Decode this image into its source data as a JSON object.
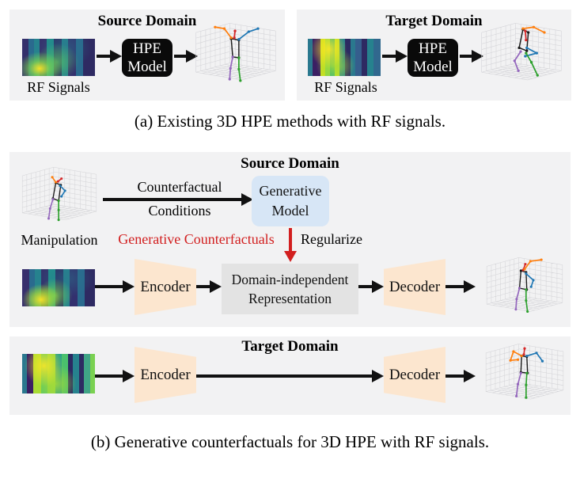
{
  "colors": {
    "panel_bg": "#f2f2f3",
    "hpe_box": "#0a0a0a",
    "hpe_text": "#ffffff",
    "generative_box": "#d7e6f6",
    "codec_box": "#fce6cf",
    "representation_box": "#e3e3e3",
    "red_accent": "#d21f1f",
    "arrow": "#111111",
    "skeleton": {
      "orange": "#ff7f0e",
      "blue": "#1f77b4",
      "red": "#d62728",
      "purple": "#9467bd",
      "green": "#2ca02c",
      "torso": "#1a1a1a",
      "grid": "#d2d2d6"
    }
  },
  "panel_a": {
    "caption": "(a) Existing 3D HPE methods with RF signals.",
    "source": {
      "title": "Source Domain",
      "input_label": "RF Signals",
      "model_line1": "HPE",
      "model_line2": "Model"
    },
    "target": {
      "title": "Target Domain",
      "input_label": "RF Signals",
      "model_line1": "HPE",
      "model_line2": "Model"
    }
  },
  "panel_b": {
    "caption": "(b) Generative counterfactuals for 3D HPE with RF signals.",
    "source": {
      "title": "Source Domain",
      "manipulation_label": "Manipulation",
      "conditions_line1": "Counterfactual",
      "conditions_line2": "Conditions",
      "generative_line1": "Generative",
      "generative_line2": "Model",
      "counterfactuals_label": "Generative Counterfactuals",
      "regularize_label": "Regularize",
      "encoder_label": "Encoder",
      "representation_line1": "Domain-independent",
      "representation_line2": "Representation",
      "decoder_label": "Decoder"
    },
    "target": {
      "title": "Target Domain",
      "encoder_label": "Encoder",
      "decoder_label": "Decoder"
    }
  }
}
